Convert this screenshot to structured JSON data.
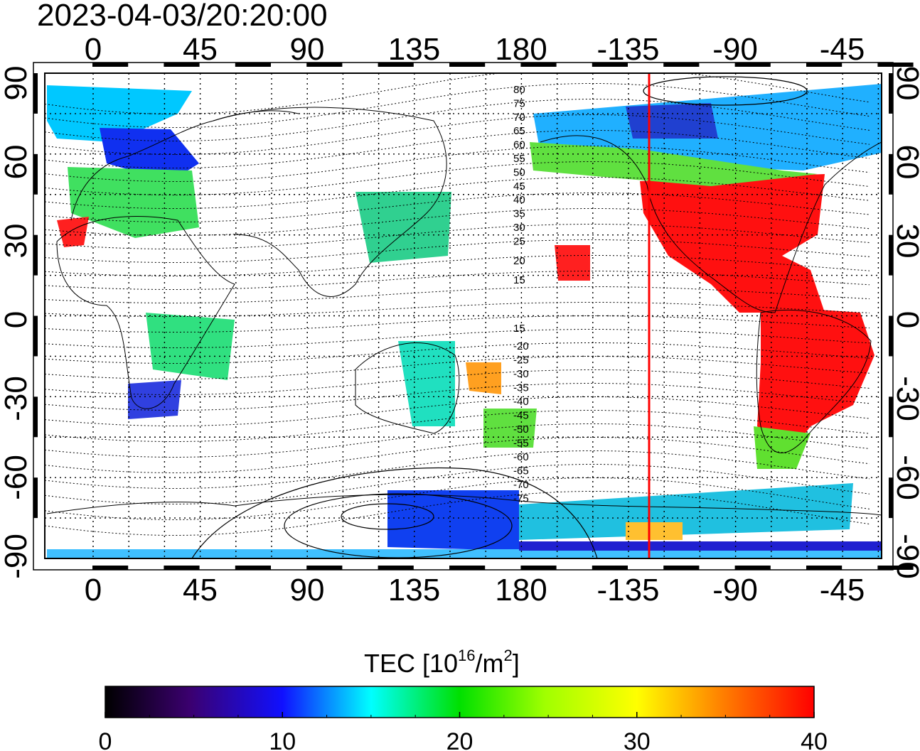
{
  "timestamp": "2023-04-03/20:20:00",
  "axes": {
    "lon_ticks": [
      "0",
      "45",
      "90",
      "135",
      "180",
      "-135",
      "-90",
      "-45"
    ],
    "lat_ticks_left": [
      "90",
      "60",
      "30",
      "0",
      "-30",
      "-60",
      "-90"
    ],
    "lat_ticks_right": [
      "90",
      "60",
      "30",
      "0",
      "-30",
      "-60",
      "-90"
    ]
  },
  "contour_labels": {
    "north": [
      "80",
      "75",
      "70",
      "65",
      "60",
      "55",
      "50",
      "45",
      "40",
      "35",
      "30",
      "25",
      "20",
      "15"
    ],
    "south": [
      "15",
      "-20",
      "-25",
      "-30",
      "-35",
      "-40",
      "-45",
      "-50",
      "-55",
      "-60",
      "-65",
      "-70",
      "-75"
    ]
  },
  "colorbar": {
    "title_prefix": "TEC  [10",
    "title_sup1": "16",
    "title_mid": "/m",
    "title_sup2": "2",
    "title_suffix": "]",
    "min": 0,
    "max": 40,
    "tick_labels": [
      "0",
      "10",
      "20",
      "30",
      "40"
    ]
  },
  "colors": {
    "terminator_line": "#ff0000",
    "frame": "#000000"
  }
}
